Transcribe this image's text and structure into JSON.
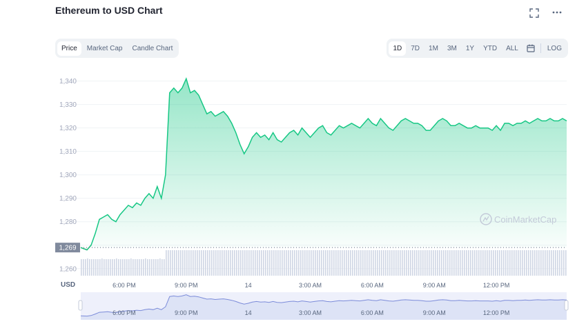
{
  "header": {
    "title": "Ethereum to USD Chart",
    "fullscreen_icon": "fullscreen-icon",
    "more_icon": "more-horizontal-icon"
  },
  "view_tabs": [
    {
      "label": "Price",
      "active": true
    },
    {
      "label": "Market Cap",
      "active": false
    },
    {
      "label": "Candle Chart",
      "active": false
    }
  ],
  "range_buttons": [
    {
      "label": "1D",
      "active": true
    },
    {
      "label": "7D",
      "active": false
    },
    {
      "label": "1M",
      "active": false
    },
    {
      "label": "3M",
      "active": false
    },
    {
      "label": "1Y",
      "active": false
    },
    {
      "label": "YTD",
      "active": false
    },
    {
      "label": "ALL",
      "active": false
    }
  ],
  "calendar_icon": "calendar-icon",
  "log_label": "LOG",
  "currency_label": "USD",
  "watermark": "CoinMarketCap",
  "colors": {
    "line": "#16c784",
    "area_top": "#16c784",
    "volume": "#cfd6e4",
    "start_segment": "#ea3943",
    "current_marker_bg": "#808a9d",
    "navigator_bg": "#eef0fb",
    "navigator_line": "#7b8bd9"
  },
  "chart_data": {
    "type": "area",
    "yticks": [
      1260,
      1270,
      1280,
      1290,
      1300,
      1310,
      1320,
      1330,
      1340
    ],
    "ytick_labels": [
      "1,260",
      "",
      "1,280",
      "1,290",
      "1,300",
      "1,310",
      "1,320",
      "1,330",
      "1,340"
    ],
    "ylim": [
      1257,
      1344
    ],
    "reference_value": 1269,
    "reference_label": "1,269",
    "xticks": [
      "6:00 PM",
      "9:00 PM",
      "14",
      "3:00 AM",
      "6:00 AM",
      "9:00 AM",
      "12:00 PM"
    ],
    "xlim_hours": [
      0,
      23.5
    ],
    "grid": true,
    "series": [
      {
        "x_hours": [
          0.0,
          0.3,
          0.5,
          0.7,
          0.9,
          1.1,
          1.3,
          1.5,
          1.7,
          1.9,
          2.1,
          2.3,
          2.5,
          2.7,
          2.9,
          3.1,
          3.3,
          3.5,
          3.7,
          3.9,
          4.1,
          4.3,
          4.5,
          4.7,
          4.9,
          5.1,
          5.3,
          5.5,
          5.7,
          5.9,
          6.1,
          6.3,
          6.5,
          6.7,
          6.9,
          7.1,
          7.3,
          7.5,
          7.7,
          7.9,
          8.1,
          8.3,
          8.5,
          8.7,
          8.9,
          9.1,
          9.3,
          9.5,
          9.7,
          9.9,
          10.1,
          10.3,
          10.5,
          10.7,
          10.9,
          11.1,
          11.3,
          11.5,
          11.7,
          11.9,
          12.1,
          12.3,
          12.5,
          12.7,
          12.9,
          13.1,
          13.3,
          13.5,
          13.7,
          13.9,
          14.1,
          14.3,
          14.5,
          14.7,
          14.9,
          15.1,
          15.3,
          15.5,
          15.7,
          15.9,
          16.1,
          16.3,
          16.5,
          16.7,
          16.9,
          17.1,
          17.3,
          17.5,
          17.7,
          17.9,
          18.1,
          18.3,
          18.5,
          18.7,
          18.9,
          19.1,
          19.3,
          19.5,
          19.7,
          19.9,
          20.1,
          20.3,
          20.5,
          20.7,
          20.9,
          21.1,
          21.3,
          21.5,
          21.7,
          21.9,
          22.1,
          22.3,
          22.5,
          22.7,
          22.9,
          23.1,
          23.3,
          23.5
        ],
        "values": [
          1269,
          1268,
          1270,
          1275,
          1281,
          1282,
          1283,
          1281,
          1280,
          1283,
          1285,
          1287,
          1286,
          1288,
          1287,
          1290,
          1292,
          1290,
          1295,
          1290,
          1300,
          1335,
          1337,
          1335,
          1337,
          1341,
          1335,
          1336,
          1334,
          1330,
          1326,
          1327,
          1325,
          1326,
          1327,
          1325,
          1322,
          1318,
          1313,
          1309,
          1312,
          1316,
          1318,
          1316,
          1317,
          1315,
          1318,
          1315,
          1314,
          1316,
          1318,
          1319,
          1317,
          1320,
          1318,
          1316,
          1318,
          1320,
          1321,
          1318,
          1317,
          1319,
          1321,
          1320,
          1321,
          1322,
          1321,
          1320,
          1322,
          1324,
          1322,
          1321,
          1324,
          1322,
          1320,
          1319,
          1321,
          1323,
          1324,
          1323,
          1322,
          1322,
          1321,
          1319,
          1319,
          1321,
          1323,
          1324,
          1323,
          1321,
          1321,
          1322,
          1321,
          1320,
          1320,
          1321,
          1320,
          1320,
          1320,
          1319,
          1321,
          1319,
          1322,
          1322,
          1321,
          1322,
          1322,
          1323,
          1322,
          1323,
          1324,
          1323,
          1323,
          1324,
          1323,
          1323,
          1324,
          1323
        ]
      }
    ]
  }
}
